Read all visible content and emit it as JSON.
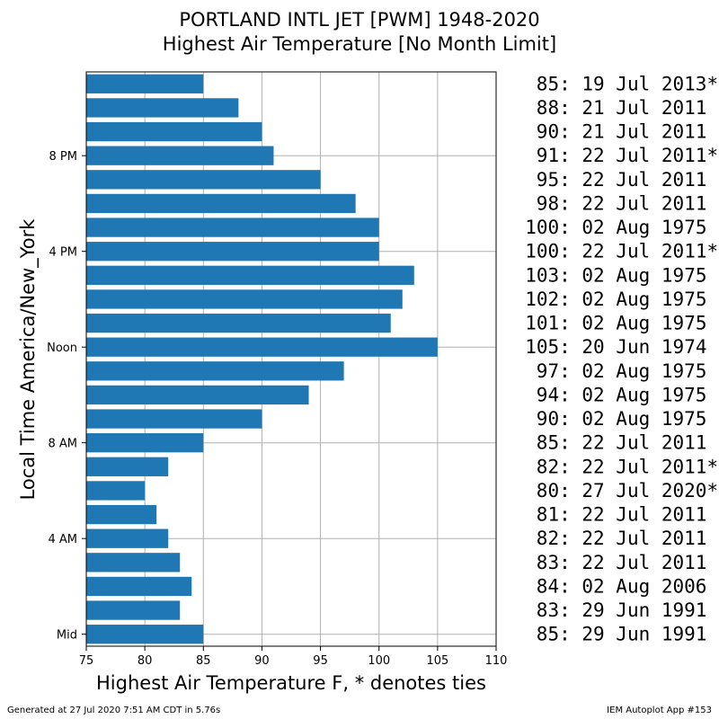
{
  "chart_data": {
    "type": "bar",
    "orientation": "horizontal",
    "title": "PORTLAND INTL JET [PWM] 1948-2020",
    "subtitle": "Highest Air Temperature [No Month Limit]",
    "xlabel": "Highest Air Temperature F, * denotes ties",
    "ylabel": "Local Time America/New_York",
    "xlim": [
      75,
      110
    ],
    "ylim": [
      -0.5,
      23.5
    ],
    "grid": true,
    "x_ticks": [
      75,
      80,
      85,
      90,
      95,
      100,
      105,
      110
    ],
    "y_ticks": [
      {
        "hour": 0,
        "label": "Mid"
      },
      {
        "hour": 4,
        "label": "4 AM"
      },
      {
        "hour": 8,
        "label": "8 AM"
      },
      {
        "hour": 12,
        "label": "Noon"
      },
      {
        "hour": 16,
        "label": "4 PM"
      },
      {
        "hour": 20,
        "label": "8 PM"
      }
    ],
    "hours": [
      0,
      1,
      2,
      3,
      4,
      5,
      6,
      7,
      8,
      9,
      10,
      11,
      12,
      13,
      14,
      15,
      16,
      17,
      18,
      19,
      20,
      21,
      22,
      23
    ],
    "values": [
      85,
      83,
      84,
      83,
      82,
      81,
      80,
      82,
      85,
      90,
      94,
      97,
      105,
      101,
      102,
      103,
      100,
      100,
      98,
      95,
      91,
      90,
      88,
      85
    ],
    "annotations": [
      "85: 29 Jun 1991",
      "83: 29 Jun 1991",
      "84: 02 Aug 2006",
      "83: 22 Jul 2011",
      "82: 22 Jul 2011",
      "81: 22 Jul 2011",
      "80: 27 Jul 2020*",
      "82: 22 Jul 2011*",
      "85: 22 Jul 2011",
      "90: 02 Aug 1975",
      "94: 02 Aug 1975",
      "97: 02 Aug 1975",
      "105: 20 Jun 1974",
      "101: 02 Aug 1975",
      "102: 02 Aug 1975",
      "103: 02 Aug 1975",
      "100: 22 Jul 2011*",
      "100: 02 Aug 1975",
      "98: 22 Jul 2011",
      "95: 22 Jul 2011",
      "91: 22 Jul 2011*",
      "90: 21 Jul 2011",
      "88: 21 Jul 2011",
      "85: 19 Jul 2013*"
    ],
    "bar_color": "#1f77b4"
  },
  "footer": {
    "left": "Generated at 27 Jul 2020 7:51 AM CDT in 5.76s",
    "right": "IEM Autoplot App #153"
  }
}
